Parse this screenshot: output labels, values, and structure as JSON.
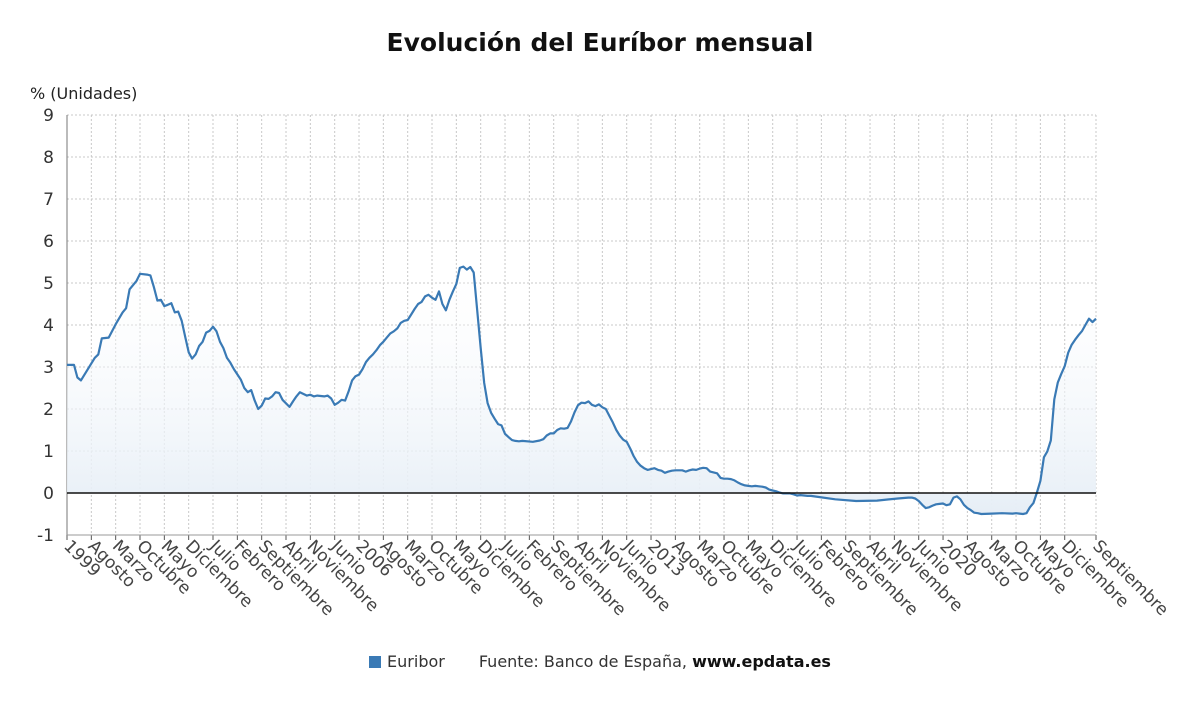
{
  "title": "Evolución del Euríbor mensual",
  "y_unit_label": "% (Unidades)",
  "legend": {
    "series_label": "Euribor",
    "source_prefix": "Fuente: Banco de España, ",
    "source_site": "www.epdata.es"
  },
  "colors": {
    "line": "#3a7ab5",
    "area": "#e6eef6",
    "zero_line": "#111111",
    "grid": "#c8c8c8"
  },
  "chart_data": {
    "type": "area",
    "title": "Evolución del Euríbor mensual",
    "ylabel": "% (Unidades)",
    "ylim": [
      -1,
      9
    ],
    "yticks": [
      -1,
      0,
      1,
      2,
      3,
      4,
      5,
      6,
      7,
      8,
      9
    ],
    "grid": true,
    "legend_position": "bottom",
    "x_start": "1999-01",
    "x_end": "2023-09",
    "xtick_labels": [
      "1999",
      "Agosto",
      "Marzo",
      "Octubre",
      "Mayo",
      "Diciembre",
      "Julio",
      "Febrero",
      "Septiembre",
      "Abril",
      "Noviembre",
      "Junio",
      "2006",
      "Agosto",
      "Marzo",
      "Octubre",
      "Mayo",
      "Diciembre",
      "Julio",
      "Febrero",
      "Septiembre",
      "Abril",
      "Noviembre",
      "Junio",
      "2013",
      "Agosto",
      "Marzo",
      "Octubre",
      "Mayo",
      "Diciembre",
      "Julio",
      "Febrero",
      "Septiembre",
      "Abril",
      "Noviembre",
      "Junio",
      "2020",
      "Agosto",
      "Marzo",
      "Octubre",
      "Mayo",
      "Diciembre",
      "Septiembre"
    ],
    "xtick_dates": [
      "1999-01",
      "1999-08",
      "2000-03",
      "2000-10",
      "2001-05",
      "2001-12",
      "2002-07",
      "2003-02",
      "2003-09",
      "2004-04",
      "2004-11",
      "2005-06",
      "2006-01",
      "2006-08",
      "2007-03",
      "2007-10",
      "2008-05",
      "2008-12",
      "2009-07",
      "2010-02",
      "2010-09",
      "2011-04",
      "2011-11",
      "2012-06",
      "2013-01",
      "2013-08",
      "2014-03",
      "2014-10",
      "2015-05",
      "2015-12",
      "2016-07",
      "2017-02",
      "2017-09",
      "2018-04",
      "2018-11",
      "2019-06",
      "2020-01",
      "2020-08",
      "2021-03",
      "2021-10",
      "2022-05",
      "2022-12",
      "2023-09"
    ],
    "series": [
      {
        "name": "Euribor",
        "points": [
          [
            "1999-01",
            3.05
          ],
          [
            "1999-03",
            3.05
          ],
          [
            "1999-04",
            2.75
          ],
          [
            "1999-05",
            2.68
          ],
          [
            "1999-07",
            2.95
          ],
          [
            "1999-09",
            3.22
          ],
          [
            "1999-10",
            3.3
          ],
          [
            "1999-11",
            3.68
          ],
          [
            "2000-01",
            3.7
          ],
          [
            "2000-03",
            4.02
          ],
          [
            "2000-05",
            4.3
          ],
          [
            "2000-06",
            4.4
          ],
          [
            "2000-07",
            4.85
          ],
          [
            "2000-09",
            5.05
          ],
          [
            "2000-10",
            5.22
          ],
          [
            "2000-12",
            5.2
          ],
          [
            "2001-01",
            5.18
          ],
          [
            "2001-02",
            4.9
          ],
          [
            "2001-03",
            4.58
          ],
          [
            "2001-04",
            4.6
          ],
          [
            "2001-05",
            4.45
          ],
          [
            "2001-06",
            4.48
          ],
          [
            "2001-07",
            4.52
          ],
          [
            "2001-08",
            4.3
          ],
          [
            "2001-09",
            4.32
          ],
          [
            "2001-10",
            4.1
          ],
          [
            "2001-11",
            3.72
          ],
          [
            "2001-12",
            3.35
          ],
          [
            "2002-01",
            3.2
          ],
          [
            "2002-02",
            3.3
          ],
          [
            "2002-03",
            3.5
          ],
          [
            "2002-04",
            3.6
          ],
          [
            "2002-05",
            3.82
          ],
          [
            "2002-06",
            3.86
          ],
          [
            "2002-07",
            3.96
          ],
          [
            "2002-08",
            3.85
          ],
          [
            "2002-09",
            3.6
          ],
          [
            "2002-10",
            3.45
          ],
          [
            "2002-11",
            3.22
          ],
          [
            "2002-12",
            3.1
          ],
          [
            "2003-01",
            2.95
          ],
          [
            "2003-03",
            2.7
          ],
          [
            "2003-04",
            2.5
          ],
          [
            "2003-05",
            2.4
          ],
          [
            "2003-06",
            2.45
          ],
          [
            "2003-07",
            2.2
          ],
          [
            "2003-08",
            2.0
          ],
          [
            "2003-09",
            2.08
          ],
          [
            "2003-10",
            2.25
          ],
          [
            "2003-11",
            2.24
          ],
          [
            "2003-12",
            2.3
          ],
          [
            "2004-01",
            2.4
          ],
          [
            "2004-02",
            2.38
          ],
          [
            "2004-03",
            2.22
          ],
          [
            "2004-05",
            2.05
          ],
          [
            "2004-06",
            2.18
          ],
          [
            "2004-07",
            2.3
          ],
          [
            "2004-08",
            2.4
          ],
          [
            "2004-10",
            2.32
          ],
          [
            "2004-11",
            2.34
          ],
          [
            "2004-12",
            2.3
          ],
          [
            "2005-01",
            2.32
          ],
          [
            "2005-03",
            2.3
          ],
          [
            "2005-04",
            2.32
          ],
          [
            "2005-05",
            2.25
          ],
          [
            "2005-06",
            2.1
          ],
          [
            "2005-07",
            2.15
          ],
          [
            "2005-08",
            2.22
          ],
          [
            "2005-09",
            2.2
          ],
          [
            "2005-10",
            2.42
          ],
          [
            "2005-11",
            2.68
          ],
          [
            "2005-12",
            2.78
          ],
          [
            "2006-01",
            2.82
          ],
          [
            "2006-02",
            2.95
          ],
          [
            "2006-03",
            3.12
          ],
          [
            "2006-04",
            3.22
          ],
          [
            "2006-05",
            3.3
          ],
          [
            "2006-06",
            3.4
          ],
          [
            "2006-07",
            3.52
          ],
          [
            "2006-08",
            3.6
          ],
          [
            "2006-09",
            3.7
          ],
          [
            "2006-10",
            3.8
          ],
          [
            "2006-11",
            3.85
          ],
          [
            "2006-12",
            3.92
          ],
          [
            "2007-01",
            4.05
          ],
          [
            "2007-02",
            4.1
          ],
          [
            "2007-03",
            4.12
          ],
          [
            "2007-04",
            4.25
          ],
          [
            "2007-05",
            4.38
          ],
          [
            "2007-06",
            4.5
          ],
          [
            "2007-07",
            4.55
          ],
          [
            "2007-08",
            4.68
          ],
          [
            "2007-09",
            4.72
          ],
          [
            "2007-10",
            4.65
          ],
          [
            "2007-11",
            4.6
          ],
          [
            "2007-12",
            4.8
          ],
          [
            "2008-01",
            4.5
          ],
          [
            "2008-02",
            4.35
          ],
          [
            "2008-03",
            4.6
          ],
          [
            "2008-04",
            4.8
          ],
          [
            "2008-05",
            4.98
          ],
          [
            "2008-06",
            5.36
          ],
          [
            "2008-07",
            5.39
          ],
          [
            "2008-08",
            5.32
          ],
          [
            "2008-09",
            5.38
          ],
          [
            "2008-10",
            5.25
          ],
          [
            "2008-11",
            4.35
          ],
          [
            "2008-12",
            3.45
          ],
          [
            "2009-01",
            2.62
          ],
          [
            "2009-02",
            2.14
          ],
          [
            "2009-03",
            1.91
          ],
          [
            "2009-04",
            1.77
          ],
          [
            "2009-05",
            1.64
          ],
          [
            "2009-06",
            1.61
          ],
          [
            "2009-07",
            1.41
          ],
          [
            "2009-08",
            1.33
          ],
          [
            "2009-09",
            1.26
          ],
          [
            "2009-10",
            1.24
          ],
          [
            "2009-11",
            1.23
          ],
          [
            "2009-12",
            1.24
          ],
          [
            "2010-03",
            1.22
          ],
          [
            "2010-05",
            1.25
          ],
          [
            "2010-06",
            1.28
          ],
          [
            "2010-07",
            1.37
          ],
          [
            "2010-08",
            1.42
          ],
          [
            "2010-09",
            1.42
          ],
          [
            "2010-10",
            1.5
          ],
          [
            "2010-11",
            1.54
          ],
          [
            "2010-12",
            1.53
          ],
          [
            "2011-01",
            1.55
          ],
          [
            "2011-02",
            1.71
          ],
          [
            "2011-03",
            1.92
          ],
          [
            "2011-04",
            2.09
          ],
          [
            "2011-05",
            2.15
          ],
          [
            "2011-06",
            2.14
          ],
          [
            "2011-07",
            2.18
          ],
          [
            "2011-08",
            2.1
          ],
          [
            "2011-09",
            2.07
          ],
          [
            "2011-10",
            2.11
          ],
          [
            "2011-11",
            2.04
          ],
          [
            "2011-12",
            2.0
          ],
          [
            "2012-01",
            1.84
          ],
          [
            "2012-02",
            1.68
          ],
          [
            "2012-03",
            1.5
          ],
          [
            "2012-04",
            1.37
          ],
          [
            "2012-05",
            1.27
          ],
          [
            "2012-06",
            1.22
          ],
          [
            "2012-07",
            1.06
          ],
          [
            "2012-08",
            0.88
          ],
          [
            "2012-09",
            0.74
          ],
          [
            "2012-10",
            0.65
          ],
          [
            "2012-11",
            0.59
          ],
          [
            "2012-12",
            0.55
          ],
          [
            "2013-01",
            0.57
          ],
          [
            "2013-02",
            0.59
          ],
          [
            "2013-03",
            0.55
          ],
          [
            "2013-04",
            0.53
          ],
          [
            "2013-05",
            0.48
          ],
          [
            "2013-06",
            0.51
          ],
          [
            "2013-07",
            0.53
          ],
          [
            "2013-08",
            0.54
          ],
          [
            "2013-09",
            0.54
          ],
          [
            "2013-10",
            0.54
          ],
          [
            "2013-11",
            0.51
          ],
          [
            "2013-12",
            0.54
          ],
          [
            "2014-01",
            0.56
          ],
          [
            "2014-02",
            0.55
          ],
          [
            "2014-03",
            0.58
          ],
          [
            "2014-04",
            0.6
          ],
          [
            "2014-05",
            0.59
          ],
          [
            "2014-06",
            0.51
          ],
          [
            "2014-07",
            0.49
          ],
          [
            "2014-08",
            0.47
          ],
          [
            "2014-09",
            0.36
          ],
          [
            "2014-10",
            0.34
          ],
          [
            "2014-11",
            0.34
          ],
          [
            "2014-12",
            0.33
          ],
          [
            "2015-01",
            0.3
          ],
          [
            "2015-02",
            0.25
          ],
          [
            "2015-03",
            0.21
          ],
          [
            "2015-04",
            0.18
          ],
          [
            "2015-05",
            0.17
          ],
          [
            "2015-06",
            0.16
          ],
          [
            "2015-07",
            0.17
          ],
          [
            "2015-08",
            0.16
          ],
          [
            "2015-09",
            0.15
          ],
          [
            "2015-10",
            0.13
          ],
          [
            "2015-11",
            0.08
          ],
          [
            "2015-12",
            0.06
          ],
          [
            "2016-01",
            0.04
          ],
          [
            "2016-02",
            0.01
          ],
          [
            "2016-03",
            -0.01
          ],
          [
            "2016-04",
            -0.01
          ],
          [
            "2016-05",
            -0.01
          ],
          [
            "2016-06",
            -0.03
          ],
          [
            "2016-07",
            -0.06
          ],
          [
            "2016-08",
            -0.05
          ],
          [
            "2016-09",
            -0.06
          ],
          [
            "2016-10",
            -0.07
          ],
          [
            "2016-11",
            -0.07
          ],
          [
            "2016-12",
            -0.08
          ],
          [
            "2017-06",
            -0.15
          ],
          [
            "2017-12",
            -0.19
          ],
          [
            "2018-06",
            -0.18
          ],
          [
            "2018-12",
            -0.13
          ],
          [
            "2019-03",
            -0.11
          ],
          [
            "2019-04",
            -0.11
          ],
          [
            "2019-05",
            -0.13
          ],
          [
            "2019-06",
            -0.19
          ],
          [
            "2019-07",
            -0.28
          ],
          [
            "2019-08",
            -0.36
          ],
          [
            "2019-09",
            -0.34
          ],
          [
            "2019-10",
            -0.3
          ],
          [
            "2019-11",
            -0.27
          ],
          [
            "2019-12",
            -0.26
          ],
          [
            "2020-01",
            -0.25
          ],
          [
            "2020-02",
            -0.29
          ],
          [
            "2020-03",
            -0.27
          ],
          [
            "2020-04",
            -0.11
          ],
          [
            "2020-05",
            -0.08
          ],
          [
            "2020-06",
            -0.15
          ],
          [
            "2020-07",
            -0.28
          ],
          [
            "2020-08",
            -0.36
          ],
          [
            "2020-09",
            -0.41
          ],
          [
            "2020-10",
            -0.47
          ],
          [
            "2020-11",
            -0.48
          ],
          [
            "2020-12",
            -0.5
          ],
          [
            "2021-03",
            -0.49
          ],
          [
            "2021-06",
            -0.48
          ],
          [
            "2021-09",
            -0.49
          ],
          [
            "2021-10",
            -0.48
          ],
          [
            "2021-11",
            -0.49
          ],
          [
            "2021-12",
            -0.5
          ],
          [
            "2022-01",
            -0.48
          ],
          [
            "2022-02",
            -0.34
          ],
          [
            "2022-03",
            -0.24
          ],
          [
            "2022-04",
            0.01
          ],
          [
            "2022-05",
            0.29
          ],
          [
            "2022-06",
            0.85
          ],
          [
            "2022-07",
            0.99
          ],
          [
            "2022-08",
            1.25
          ],
          [
            "2022-09",
            2.23
          ],
          [
            "2022-10",
            2.63
          ],
          [
            "2022-11",
            2.83
          ],
          [
            "2022-12",
            3.02
          ],
          [
            "2023-01",
            3.34
          ],
          [
            "2023-02",
            3.53
          ],
          [
            "2023-03",
            3.65
          ],
          [
            "2023-04",
            3.76
          ],
          [
            "2023-05",
            3.86
          ],
          [
            "2023-06",
            4.01
          ],
          [
            "2023-07",
            4.15
          ],
          [
            "2023-08",
            4.07
          ],
          [
            "2023-09",
            4.15
          ]
        ]
      }
    ]
  }
}
